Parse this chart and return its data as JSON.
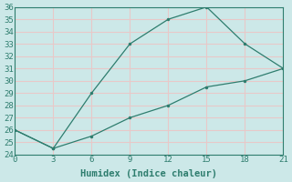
{
  "line1_x": [
    0,
    3,
    6,
    9,
    12,
    15,
    18,
    21
  ],
  "line1_y": [
    26,
    24.5,
    29,
    33,
    35,
    36,
    33,
    31
  ],
  "line2_x": [
    0,
    3,
    6,
    9,
    12,
    15,
    18,
    21
  ],
  "line2_y": [
    26,
    24.5,
    25.5,
    27,
    28,
    29.5,
    30,
    31
  ],
  "line_color": "#2e7d6e",
  "bg_color": "#cce8e8",
  "grid_color_major": "#e8c8c8",
  "grid_color_minor": "#e8c8c8",
  "xlabel": "Humidex (Indice chaleur)",
  "xlim": [
    0,
    21
  ],
  "ylim": [
    24,
    36
  ],
  "xticks": [
    0,
    3,
    6,
    9,
    12,
    15,
    18,
    21
  ],
  "yticks": [
    24,
    25,
    26,
    27,
    28,
    29,
    30,
    31,
    32,
    33,
    34,
    35,
    36
  ],
  "xlabel_fontsize": 7.5,
  "tick_fontsize": 6.5
}
